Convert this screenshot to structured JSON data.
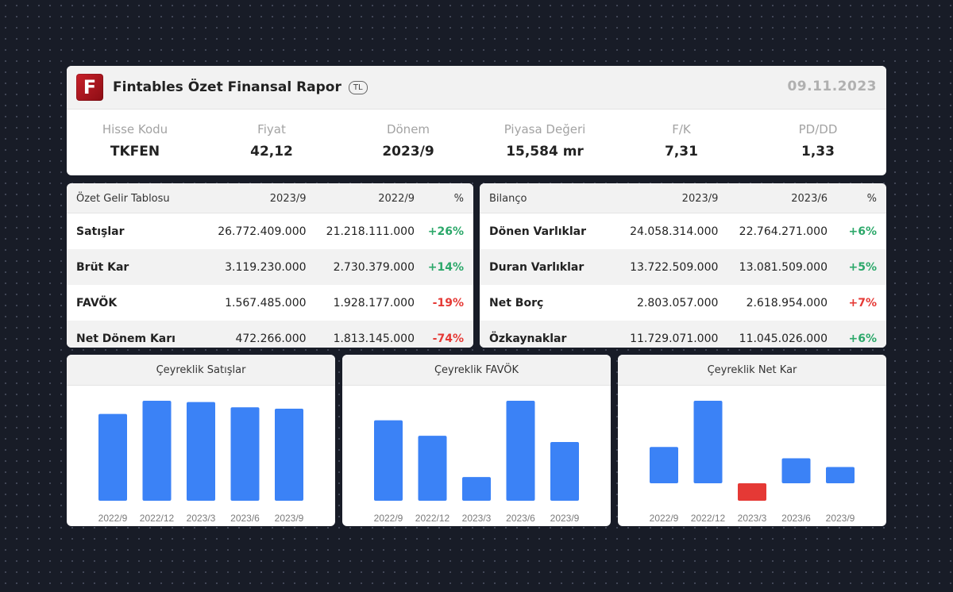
{
  "header": {
    "logo_letter": "F",
    "title": "Fintables Özet Finansal Rapor",
    "currency": "TL",
    "date": "09.11.2023"
  },
  "metrics": [
    {
      "label": "Hisse Kodu",
      "value": "TKFEN"
    },
    {
      "label": "Fiyat",
      "value": "42,12"
    },
    {
      "label": "Dönem",
      "value": "2023/9"
    },
    {
      "label": "Piyasa Değeri",
      "value": "15,584 mr"
    },
    {
      "label": "F/K",
      "value": "7,31"
    },
    {
      "label": "PD/DD",
      "value": "1,33"
    }
  ],
  "income_table": {
    "headers": [
      "Özet Gelir Tablosu",
      "2023/9",
      "2022/9",
      "%"
    ],
    "rows": [
      {
        "name": "Satışlar",
        "current": "26.772.409.000",
        "previous": "21.218.111.000",
        "change": "+26%"
      },
      {
        "name": "Brüt Kar",
        "current": "3.119.230.000",
        "previous": "2.730.379.000",
        "change": "+14%"
      },
      {
        "name": "FAVÖK",
        "current": "1.567.485.000",
        "previous": "1.928.177.000",
        "change": "-19%"
      },
      {
        "name": "Net Dönem Karı",
        "current": "472.266.000",
        "previous": "1.813.145.000",
        "change": "-74%"
      }
    ]
  },
  "balance_table": {
    "headers": [
      "Bilanço",
      "2023/9",
      "2023/6",
      "%"
    ],
    "rows": [
      {
        "name": "Dönen Varlıklar",
        "current": "24.058.314.000",
        "previous": "22.764.271.000",
        "change": "+6%"
      },
      {
        "name": "Duran Varlıklar",
        "current": "13.722.509.000",
        "previous": "13.081.509.000",
        "change": "+5%"
      },
      {
        "name": "Net Borç",
        "current": "2.803.057.000",
        "previous": "2.618.954.000",
        "change": "+7%"
      },
      {
        "name": "Özkaynaklar",
        "current": "11.729.071.000",
        "previous": "11.045.026.000",
        "change": "+6%"
      }
    ]
  },
  "colors": {
    "bar_positive": "#3b82f6",
    "bar_negative": "#e53935",
    "change_positive": "#2ca86a",
    "change_negative": "#e53935",
    "brand": "#c8202a"
  },
  "chart_data": [
    {
      "type": "bar",
      "title": "Çeyreklik Satışlar",
      "categories": [
        "2022/9",
        "2022/12",
        "2023/3",
        "2023/6",
        "2023/9"
      ],
      "values": [
        6.6,
        7.6,
        7.5,
        7.1,
        7.0
      ],
      "ylim": [
        0,
        7.6
      ]
    },
    {
      "type": "bar",
      "title": "Çeyreklik FAVÖK",
      "categories": [
        "2022/9",
        "2022/12",
        "2023/3",
        "2023/6",
        "2023/9"
      ],
      "values": [
        0.78,
        0.63,
        0.23,
        0.97,
        0.57
      ],
      "ylim": [
        0,
        0.97
      ]
    },
    {
      "type": "bar",
      "title": "Çeyreklik Net Kar",
      "categories": [
        "2022/9",
        "2022/12",
        "2023/3",
        "2023/6",
        "2023/9"
      ],
      "values": [
        0.29,
        0.66,
        -0.14,
        0.2,
        0.13
      ],
      "ylim": [
        -0.14,
        0.66
      ]
    }
  ]
}
